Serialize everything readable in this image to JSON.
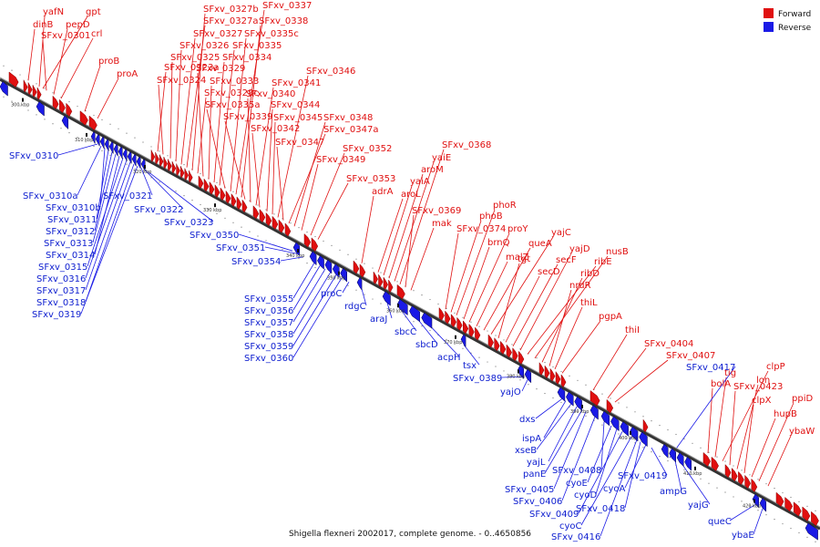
{
  "caption": "Shigella flexneri 2002017, complete genome. - 0..4650856",
  "legend": {
    "forward_label": "Forward",
    "reverse_label": "Reverse",
    "forward_color": "#e01010",
    "reverse_color": "#1a1ae6"
  },
  "ticks": [
    "300 kbp",
    "310 kbp",
    "320 kbp",
    "330 kbp",
    "340 kbp",
    "350 kbp",
    "360 kbp",
    "370 kbp",
    "380 kbp",
    "390 kbp",
    "400 kbp",
    "410 kbp",
    "420 kbp"
  ],
  "forward_genes": [
    "dinB",
    "yafN",
    "gpt",
    "SFxv_0301",
    "pepD",
    "crl",
    "proB",
    "proA",
    "SFxv_0323a",
    "SFxv_0324",
    "SFxv_0325",
    "SFxv_0326",
    "SFxv_0327",
    "SFxv_0327a",
    "SFxv_0327b",
    "SFxv_0328c",
    "SFxv_0329",
    "SFxv_0333",
    "SFxv_0334",
    "SFxv_0335",
    "SFxv_0335a",
    "SFxv_0335c",
    "SFxv_0337",
    "SFxv_0338",
    "SFxv_0339",
    "SFxv_0340",
    "SFxv_0341",
    "SFxv_0342",
    "SFxv_0344",
    "SFxv_0345",
    "SFxv_0346",
    "SFxv_0347",
    "SFxv_0347a",
    "SFxv_0348",
    "SFxv_0349",
    "SFxv_0352",
    "SFxv_0353",
    "adrA",
    "aroL",
    "yaiA",
    "aroM",
    "yaiE",
    "SFxv_0368",
    "SFxv_0369",
    "mak",
    "SFxv_0374",
    "phoB",
    "phoR",
    "brnQ",
    "proY",
    "malZ",
    "queA",
    "yajC",
    "tgt",
    "secD",
    "secF",
    "yajD",
    "ribE",
    "nusB",
    "ribD",
    "nrdR",
    "thiL",
    "pgpA",
    "thiI",
    "SFxv_0404",
    "SFxv_0407",
    "bolA",
    "tig",
    "clpP",
    "SFxv_0423",
    "lon",
    "clpX",
    "hupB",
    "ppiD",
    "ybaW"
  ],
  "reverse_genes": [
    "SFxv_0310",
    "SFxv_0310a",
    "SFxv_0310b",
    "SFxv_0311",
    "SFxv_0312",
    "SFxv_0313",
    "SFxv_0314",
    "SFxv_0315",
    "SFxv_0316",
    "SFxv_0317",
    "SFxv_0318",
    "SFxv_0319",
    "SFxv_0321",
    "SFxv_0322",
    "SFxv_0323",
    "SFxv_0350",
    "SFxv_0351",
    "SFxv_0354",
    "SFxv_0355",
    "SFxv_0356",
    "SFxv_0357",
    "SFxv_0358",
    "SFxv_0359",
    "SFxv_0360",
    "proC",
    "rdgC",
    "araJ",
    "sbcC",
    "sbcD",
    "acpH",
    "tsx",
    "SFxv_0389",
    "yajO",
    "dxs",
    "ispA",
    "xseB",
    "yajL",
    "panE",
    "SFxv_0405",
    "SFxv_0406",
    "SFxv_0408",
    "cyoE",
    "cyoD",
    "SFxv_0409",
    "cyoC",
    "SFxv_0416",
    "SFxv_0418",
    "cyoA",
    "SFxv_0419",
    "SFxv_0417",
    "ampG",
    "yajG",
    "queC",
    "ybaE"
  ]
}
